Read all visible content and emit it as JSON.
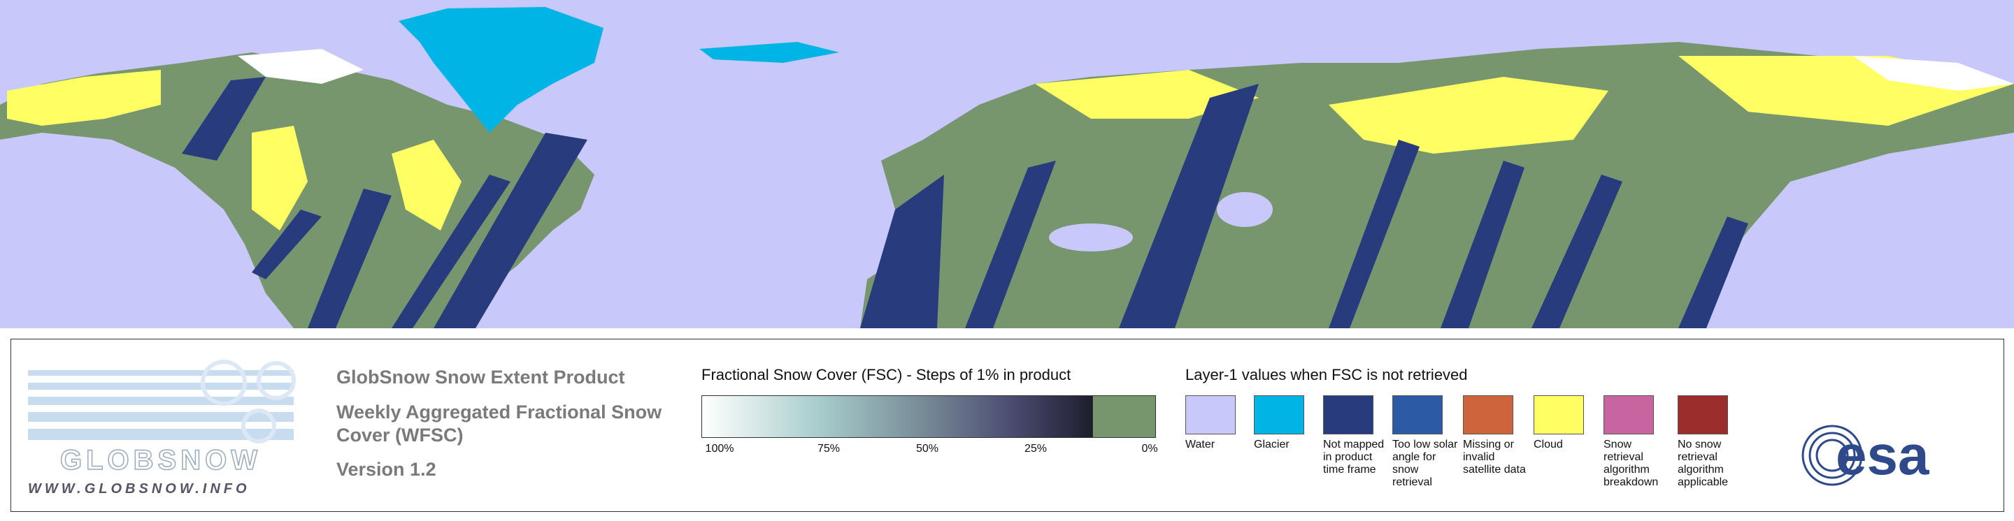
{
  "logo": {
    "name": "GLOBSNOW",
    "url": "WWW.GLOBSNOW.INFO"
  },
  "product": {
    "title": "GlobSnow Snow Extent Product",
    "subtitle": "Weekly Aggregated Fractional Snow Cover (WFSC)",
    "version": "Version 1.2"
  },
  "fsc_scale": {
    "title": "Fractional Snow Cover (FSC) - Steps of 1% in product",
    "ticks": [
      "100%",
      "75%",
      "50%",
      "25%",
      "0%"
    ]
  },
  "layer1": {
    "title": "Layer-1 values when FSC is not retrieved",
    "items": [
      {
        "label": "Water",
        "color": "#c8c8fa"
      },
      {
        "label": "Glacier",
        "color": "#00b4e6"
      },
      {
        "label": "Not mapped in product time frame",
        "color": "#283c7d"
      },
      {
        "label": "Too low solar angle for snow retrieval",
        "color": "#2d5aa5"
      },
      {
        "label": "Missing or invalid satellite data",
        "color": "#cd643c"
      },
      {
        "label": "Cloud",
        "color": "#ffff64"
      },
      {
        "label": "Snow retrieval algorithm breakdown",
        "color": "#c864a0"
      },
      {
        "label": "No snow retrieval algorithm applicable",
        "color": "#9b2d2d"
      }
    ]
  },
  "agency": "esa"
}
